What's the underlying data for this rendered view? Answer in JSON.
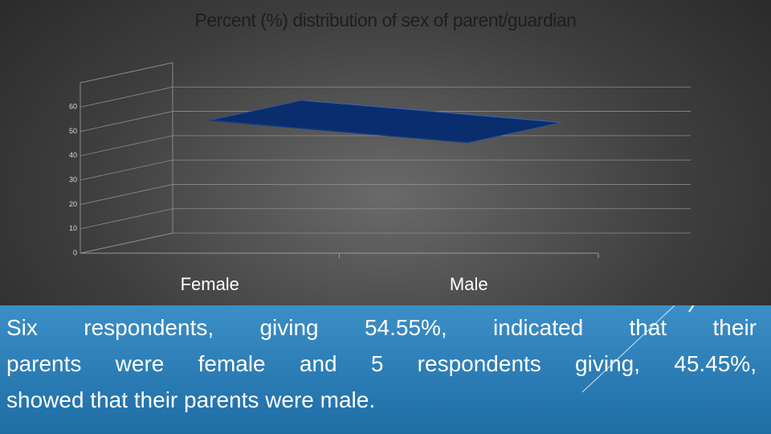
{
  "chart_data": {
    "type": "line",
    "title": "Percent (%) distribution of sex of parent/guardian",
    "categories": [
      "Female",
      "Male"
    ],
    "series": [
      {
        "values": [
          54.55,
          45.45
        ],
        "color": "#0a2d6e"
      }
    ],
    "ylim": [
      0,
      70
    ],
    "yticks": [
      0,
      10,
      20,
      30,
      40,
      50,
      60
    ],
    "grid": true
  },
  "paragraph_lines": [
    "Six respondents, giving 54.55%, indicated that their",
    "parents were female and 5 respondents giving, 45.45%,",
    "showed that their parents were male."
  ]
}
